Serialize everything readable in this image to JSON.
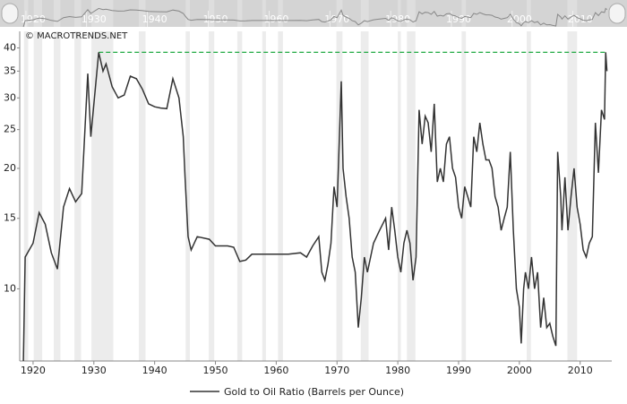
{
  "chart_data": {
    "type": "line",
    "watermark": "© MACROTRENDS.NET",
    "log_scale": true,
    "xlim": [
      1917.8,
      2015.2
    ],
    "xticks": [
      1920,
      1930,
      1940,
      1950,
      1960,
      1970,
      1980,
      1990,
      2000,
      2010
    ],
    "navigator_ticks": [
      1920,
      1930,
      1940,
      1950,
      1960,
      1970,
      1980,
      1990,
      2000,
      2010
    ],
    "ylim": [
      6.6,
      44
    ],
    "yticks": [
      10,
      15,
      20,
      25,
      30,
      35,
      40
    ],
    "reference_line": {
      "value": 39,
      "color": "#22aa44"
    },
    "shaded_color": "#ececec",
    "shaded_periods": [
      [
        1918.5,
        1919.2
      ],
      [
        1920.1,
        1921.5
      ],
      [
        1923.4,
        1924.5
      ],
      [
        1926.8,
        1927.9
      ],
      [
        1929.6,
        1933.2
      ],
      [
        1937.4,
        1938.5
      ],
      [
        1945.1,
        1945.8
      ],
      [
        1948.9,
        1949.8
      ],
      [
        1953.6,
        1954.4
      ],
      [
        1957.7,
        1958.3
      ],
      [
        1960.3,
        1961.1
      ],
      [
        1969.9,
        1970.9
      ],
      [
        1973.9,
        1975.2
      ],
      [
        1980.0,
        1980.5
      ],
      [
        1981.5,
        1982.9
      ],
      [
        1990.5,
        1991.2
      ],
      [
        2001.2,
        2001.9
      ],
      [
        2007.9,
        2009.5
      ]
    ],
    "x": [
      1918.4,
      1918.7,
      1920,
      1921,
      1922,
      1923,
      1924,
      1925,
      1926,
      1927,
      1928,
      1929,
      1929.5,
      1930.8,
      1931.5,
      1932,
      1933,
      1934,
      1935,
      1936,
      1937,
      1938,
      1939,
      1940,
      1941,
      1942,
      1943,
      1944,
      1944.7,
      1945,
      1945.5,
      1946,
      1947,
      1949,
      1950,
      1952,
      1953,
      1954,
      1955,
      1956,
      1958,
      1960,
      1962,
      1964,
      1965,
      1966,
      1967,
      1967.5,
      1968,
      1968.5,
      1969,
      1969.5,
      1970,
      1970.7,
      1971,
      1971.5,
      1972,
      1972.5,
      1973,
      1973.5,
      1974,
      1974.5,
      1975,
      1976,
      1977,
      1978,
      1978.5,
      1979,
      1979.5,
      1980,
      1980.5,
      1981,
      1981.5,
      1982,
      1982.5,
      1983,
      1983.5,
      1984,
      1984.5,
      1985,
      1985.5,
      1986,
      1986.5,
      1987,
      1987.5,
      1988,
      1988.5,
      1989,
      1989.5,
      1990,
      1990.5,
      1991,
      1991.5,
      1992,
      1992.5,
      1993,
      1993.5,
      1994,
      1994.5,
      1995,
      1995.5,
      1996,
      1996.5,
      1997,
      1997.5,
      1998,
      1998.5,
      1999,
      1999.5,
      2000,
      2000.3,
      2000.7,
      2001,
      2001.5,
      2002,
      2002.5,
      2003,
      2003.5,
      2004,
      2004.5,
      2005,
      2005.5,
      2006,
      2006.3,
      2006.8,
      2007,
      2007.5,
      2008,
      2008.5,
      2009,
      2009.5,
      2010,
      2010.5,
      2011,
      2011.5,
      2012,
      2012.5,
      2013,
      2013.5,
      2014,
      2014.2,
      2014.4
    ],
    "series": [
      {
        "name": "Gold to Oil Ratio (Barrels per Ounce)",
        "color": "#333333",
        "values": [
          6.6,
          12,
          13,
          15.5,
          14.5,
          12.3,
          11.2,
          16,
          17.8,
          16.5,
          17.3,
          34.5,
          24,
          39,
          35,
          36.5,
          32,
          30,
          30.5,
          34,
          33.5,
          31.5,
          29,
          28.5,
          28.3,
          28.2,
          33.5,
          30,
          24,
          19,
          13.5,
          12.5,
          13.5,
          13.3,
          12.8,
          12.8,
          12.7,
          11.7,
          11.8,
          12.2,
          12.2,
          12.2,
          12.2,
          12.3,
          12,
          12.8,
          13.5,
          11,
          10.5,
          11.5,
          13,
          18,
          16,
          33,
          20,
          17,
          15,
          12,
          11,
          8,
          9.5,
          12,
          11,
          13,
          14,
          15,
          12.5,
          16,
          14,
          12,
          11,
          13,
          14,
          13,
          10.5,
          12,
          28,
          23,
          27,
          26,
          22,
          29,
          18.5,
          20,
          18.5,
          23,
          24,
          20,
          19,
          16,
          15,
          18,
          17,
          16,
          24,
          22,
          26,
          23,
          21,
          21,
          20,
          17,
          16,
          14,
          15,
          16,
          22,
          14,
          10,
          9,
          7.3,
          10,
          11,
          10,
          12,
          10,
          11,
          8,
          9.5,
          8,
          8.2,
          7.6,
          7.2,
          22,
          17,
          14,
          19,
          14,
          17,
          20,
          16,
          14.5,
          12.5,
          12,
          13,
          13.5,
          26,
          19.5,
          28,
          26.5,
          39,
          35
        ]
      }
    ]
  }
}
